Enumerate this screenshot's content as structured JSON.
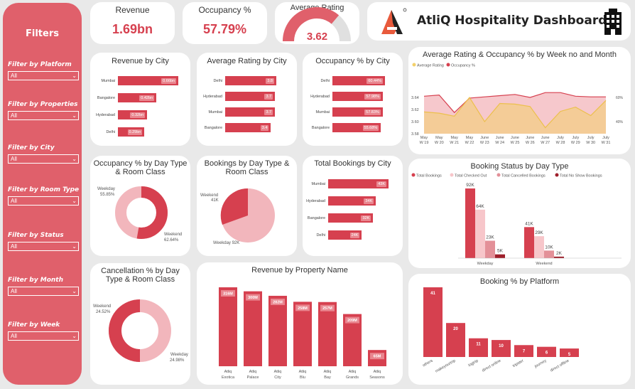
{
  "sidebar": {
    "title": "Filters",
    "filters": [
      {
        "label": "Filter by Platform",
        "value": "All"
      },
      {
        "label": "Filter by Properties",
        "value": "All"
      },
      {
        "label": "Filter by City",
        "value": "All"
      },
      {
        "label": "Filter by Room Type",
        "value": "All"
      },
      {
        "label": "Filter by Status",
        "value": "All"
      },
      {
        "label": "Filter by Month",
        "value": "All"
      },
      {
        "label": "Filter by Week",
        "value": "All"
      }
    ]
  },
  "kpis": {
    "revenue": {
      "label": "Revenue",
      "value": "1.69bn"
    },
    "occupancy": {
      "label": "Occupancy %",
      "value": "57.79%"
    },
    "rating": {
      "label": "Average Rating",
      "value": "3.62",
      "gauge_fraction": 0.724
    }
  },
  "header": {
    "title": "AtliQ Hospitality Dashboard"
  },
  "colors": {
    "primary": "#d6404f",
    "secondary": "#f2b6bc",
    "sidebar": "#e0606b",
    "yellow": "#f2d06b"
  },
  "revenue_by_city": {
    "title": "Revenue by City",
    "rows": [
      {
        "city": "Mumbai",
        "value": 0.66,
        "label": "0.66bn"
      },
      {
        "city": "Bangalore",
        "value": 0.42,
        "label": "0.42bn"
      },
      {
        "city": "Hyderabad",
        "value": 0.32,
        "label": "0.32bn"
      },
      {
        "city": "Delhi",
        "value": 0.29,
        "label": "0.29bn"
      }
    ]
  },
  "rating_by_city": {
    "title": "Average Rating by City",
    "rows": [
      {
        "city": "Delhi",
        "value": 3.8,
        "label": "3.8"
      },
      {
        "city": "Hyderabad",
        "value": 3.7,
        "label": "3.7"
      },
      {
        "city": "Mumbai",
        "value": 3.7,
        "label": "3.7"
      },
      {
        "city": "Bangalore",
        "value": 3.4,
        "label": "3.4"
      }
    ]
  },
  "occupancy_by_city": {
    "title": "Occupancy % by City",
    "rows": [
      {
        "city": "Delhi",
        "value": 60.44,
        "label": "60.44%"
      },
      {
        "city": "Hyderabad",
        "value": 57.98,
        "label": "57.98%"
      },
      {
        "city": "Mumbai",
        "value": 57.83,
        "label": "57.83%"
      },
      {
        "city": "Bangalore",
        "value": 55.68,
        "label": "55.68%"
      }
    ]
  },
  "total_bookings_by_city": {
    "title": "Total Bookings by City",
    "rows": [
      {
        "city": "Mumbai",
        "value": 43,
        "label": "43K"
      },
      {
        "city": "Hyderabad",
        "value": 34,
        "label": "34K"
      },
      {
        "city": "Bangalore",
        "value": 32,
        "label": "32K"
      },
      {
        "city": "Delhi",
        "value": 24,
        "label": "24K"
      }
    ]
  },
  "occupancy_day_type": {
    "title": "Occupancy % by Day Type & Room Class",
    "weekday_label": "Weekday",
    "weekday_value": "55.85%",
    "weekend_label": "Weekend",
    "weekend_value": "62.64%"
  },
  "bookings_day_type": {
    "title": "Bookings by Day Type & Room Class",
    "weekend_label": "Weekend",
    "weekend_value": "41K",
    "weekday_label": "Weekday 92K"
  },
  "cancellation_day_type": {
    "title": "Cancellation % by Day Type & Room Class",
    "weekend_label": "Weekend",
    "weekend_value": "24.52%",
    "weekday_label": "Weekday",
    "weekday_value": "24.98%"
  },
  "chart_data": [
    {
      "type": "area",
      "title": "Average Rating & Occupancy % by Week no and Month",
      "legend": [
        "Average Rating",
        "Occupancy %"
      ],
      "categories": [
        [
          "May",
          "W 19"
        ],
        [
          "May",
          "W 20"
        ],
        [
          "May",
          "W 21"
        ],
        [
          "May",
          "W 22"
        ],
        [
          "June",
          "W 23"
        ],
        [
          "June",
          "W 24"
        ],
        [
          "June",
          "W 25"
        ],
        [
          "June",
          "W 26"
        ],
        [
          "June",
          "W 27"
        ],
        [
          "July",
          "W 28"
        ],
        [
          "July",
          "W 29"
        ],
        [
          "July",
          "W 30"
        ],
        [
          "July",
          "W 31"
        ]
      ],
      "y_ticks": [
        "3.64",
        "3.62",
        "3.60",
        "3.58"
      ],
      "ylim": [
        3.58,
        3.66
      ],
      "series": [
        {
          "name": "Average Rating",
          "values": [
            3.616,
            3.614,
            3.609,
            3.64,
            3.6,
            3.63,
            3.629,
            3.625,
            3.59,
            3.617,
            3.624,
            3.61,
            3.635
          ]
        },
        {
          "name": "Occupancy %",
          "values": [
            3.642,
            3.644,
            3.615,
            3.639,
            3.641,
            3.643,
            3.645,
            3.64,
            3.648,
            3.648,
            3.642,
            3.641,
            3.641
          ]
        }
      ]
    },
    {
      "type": "bar",
      "title": "Booking Status by Day Type",
      "legend": [
        "Total Bookings",
        "Total Checked Out",
        "Total Cancelled Bookings",
        "Total No Show Bookings"
      ],
      "categories": [
        "Weekday",
        "Weekend"
      ],
      "series": [
        {
          "name": "Total Bookings",
          "values": [
            92,
            41
          ],
          "labels": [
            "92K",
            "41K"
          ]
        },
        {
          "name": "Total Checked Out",
          "values": [
            64,
            29
          ],
          "labels": [
            "64K",
            "29K"
          ]
        },
        {
          "name": "Total Cancelled Bookings",
          "values": [
            23,
            10
          ],
          "labels": [
            "23K",
            "10K"
          ]
        },
        {
          "name": "Total No Show Bookings",
          "values": [
            5,
            2
          ],
          "labels": [
            "5K",
            "2K"
          ]
        }
      ]
    },
    {
      "type": "bar",
      "title": "Revenue by Property Name",
      "categories": [
        "Atliq Exotica",
        "Atliq Palace",
        "Atliq City",
        "Atliq Blu",
        "Atliq Bay",
        "Atliq Grands",
        "Atliq Seasons"
      ],
      "values": [
        316,
        300,
        282,
        258,
        257,
        209,
        65
      ],
      "labels": [
        "316M",
        "300M",
        "282M",
        "258M",
        "257M",
        "209M",
        "65M"
      ]
    },
    {
      "type": "bar",
      "title": "Booking % by Platform",
      "categories": [
        "others",
        "makeyourtrip",
        "logtrip",
        "direct online",
        "tripster",
        "journey",
        "direct offline"
      ],
      "values": [
        41,
        20,
        11,
        10,
        7,
        6,
        5
      ],
      "labels": [
        "41",
        "20",
        "11",
        "10",
        "7",
        "6",
        "5"
      ]
    }
  ]
}
